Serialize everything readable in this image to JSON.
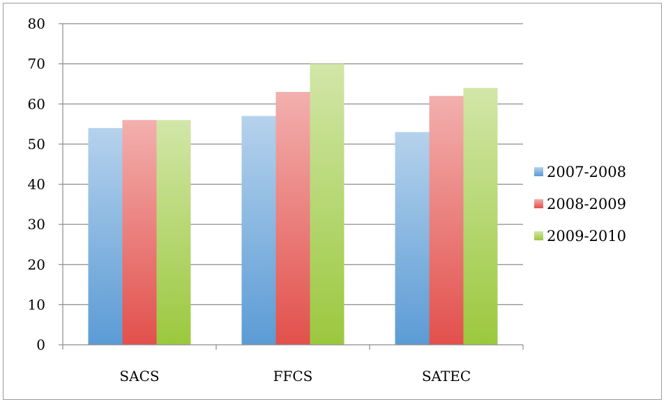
{
  "chart_data": {
    "type": "bar",
    "title": "",
    "xlabel": "",
    "ylabel": "",
    "categories": [
      "SACS",
      "FFCS",
      "SATEC"
    ],
    "series": [
      {
        "name": "2007-2008",
        "values": [
          54,
          57,
          53
        ],
        "color": "#5b9bd5"
      },
      {
        "name": "2008-2009",
        "values": [
          56,
          63,
          62
        ],
        "color": "#e2504c"
      },
      {
        "name": "2009-2010",
        "values": [
          56,
          70,
          64
        ],
        "color": "#9bc83e"
      }
    ],
    "ylim": [
      0,
      80
    ],
    "yticks": [
      "0",
      "10",
      "20",
      "30",
      "40",
      "50",
      "60",
      "70",
      "80"
    ],
    "grid": true,
    "legend_position": "right"
  }
}
